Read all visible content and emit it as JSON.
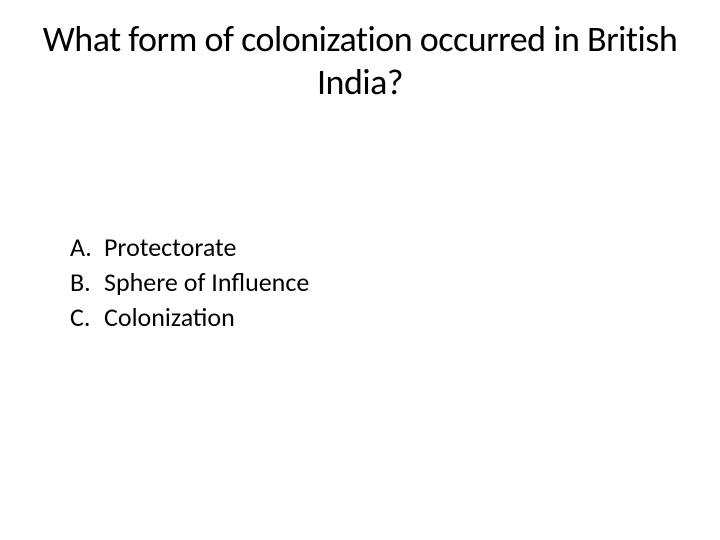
{
  "slide": {
    "title": "What form of colonization occurred in British India?",
    "title_fontsize": 36,
    "title_color": "#000000",
    "background_color": "#ffffff"
  },
  "options": {
    "items": [
      {
        "marker": "A.",
        "text": "Protectorate"
      },
      {
        "marker": "B.",
        "text": "Sphere of Influence"
      },
      {
        "marker": "C.",
        "text": "Colonization"
      }
    ],
    "fontsize": 26,
    "color": "#000000"
  }
}
